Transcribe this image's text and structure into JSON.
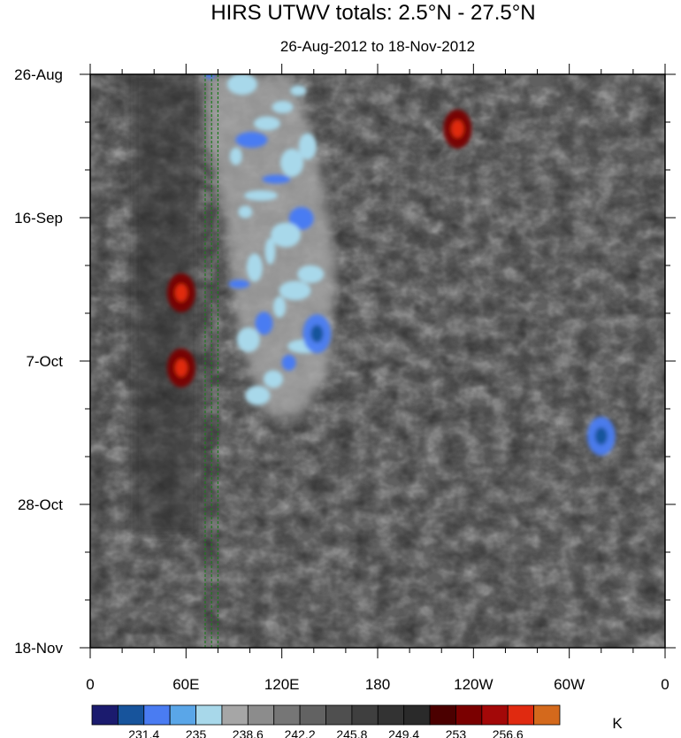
{
  "chart_data": {
    "type": "heatmap",
    "title": "HIRS UTWV totals: 2.5°N - 27.5°N",
    "subtitle": "26-Aug-2012 to 18-Nov-2012",
    "x_ticks": [
      {
        "lon": 0,
        "label": "0"
      },
      {
        "lon": 60,
        "label": "60E"
      },
      {
        "lon": 120,
        "label": "120E"
      },
      {
        "lon": 180,
        "label": "180"
      },
      {
        "lon": 240,
        "label": "120W"
      },
      {
        "lon": 300,
        "label": "60W"
      },
      {
        "lon": 360,
        "label": "0"
      }
    ],
    "x_range": [
      0,
      360
    ],
    "y_ticks": [
      {
        "day": 0,
        "label": "26-Aug"
      },
      {
        "day": 21,
        "label": "16-Sep"
      },
      {
        "day": 42,
        "label": "7-Oct"
      },
      {
        "day": 63,
        "label": "28-Oct"
      },
      {
        "day": 84,
        "label": "18-Nov"
      }
    ],
    "y_range_days": [
      0,
      84
    ],
    "y_direction": "time increases downward",
    "reference_lines_lon": [
      72,
      76,
      80
    ],
    "colorbar": {
      "units": "K",
      "colors": [
        "#1b1b6e",
        "#17549c",
        "#4a7cf2",
        "#5aa6e8",
        "#a8d8ea",
        "#a6a6a6",
        "#8c8c8c",
        "#767676",
        "#626262",
        "#4f4f4f",
        "#3f3f3f",
        "#333333",
        "#2a2a2a",
        "#4b0000",
        "#7a0000",
        "#a30808",
        "#e02a10",
        "#d4691c"
      ],
      "levels": [
        231.4,
        235,
        238.6,
        242.2,
        245.8,
        249.4,
        253,
        256.6
      ],
      "level_labels": [
        "231.4",
        "235",
        "238.6",
        "242.2",
        "245.8",
        "249.4",
        "253",
        "256.6"
      ]
    },
    "features": [
      {
        "desc": "moist (low K) band over Indian Ocean / Maritime Continent",
        "lon_range": [
          75,
          140
        ],
        "days": [
          0,
          48
        ],
        "value_k": 236
      },
      {
        "desc": "moist blob",
        "lon": 142,
        "day": 38,
        "value_k": 231
      },
      {
        "desc": "moist blob",
        "lon": 320,
        "day": 53,
        "value_k": 232
      },
      {
        "desc": "dry blob",
        "lon": 230,
        "day": 8,
        "value_k": 257
      },
      {
        "desc": "dry blob",
        "lon": 57,
        "day": 32,
        "value_k": 255
      },
      {
        "desc": "dry blob",
        "lon": 57,
        "day": 43,
        "value_k": 255
      }
    ]
  }
}
